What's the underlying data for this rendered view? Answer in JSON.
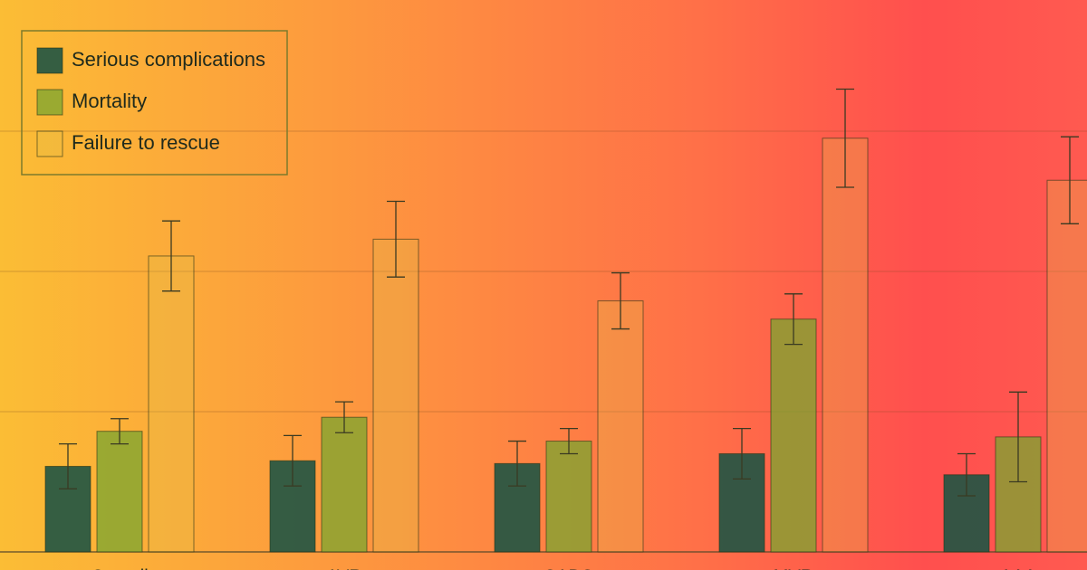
{
  "chart_data": {
    "type": "bar",
    "categories": [
      "Overall",
      "AVR",
      "CABG",
      "MVR",
      "AAA"
    ],
    "series": [
      {
        "name": "Serious complications",
        "color": "#1f5444",
        "values": [
          0.61,
          0.65,
          0.63,
          0.7,
          0.55
        ],
        "errors": [
          0.16,
          0.18,
          0.16,
          0.18,
          0.15
        ]
      },
      {
        "name": "Mortality",
        "color": "#79a530",
        "values": [
          0.86,
          0.96,
          0.79,
          1.66,
          0.82
        ],
        "errors": [
          0.09,
          0.11,
          0.09,
          0.18,
          0.32
        ]
      },
      {
        "name": "Failure to rescue",
        "color": "#e0c04a",
        "values": [
          2.11,
          2.23,
          1.79,
          2.95,
          2.65
        ],
        "errors": [
          0.25,
          0.27,
          0.2,
          0.35,
          0.31
        ]
      }
    ],
    "ylim": [
      0,
      4
    ],
    "yticks": [
      0,
      1,
      2,
      3
    ],
    "grid": true,
    "legend": "top-left"
  }
}
